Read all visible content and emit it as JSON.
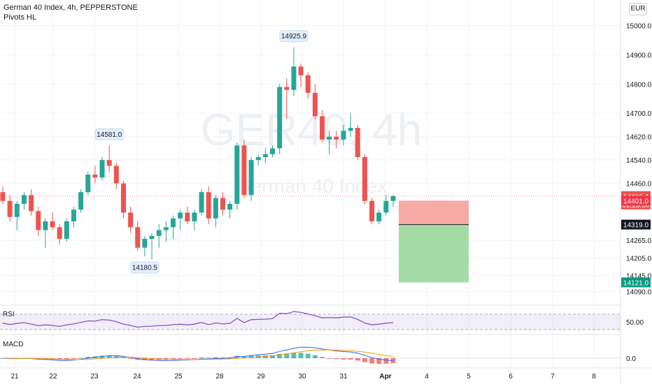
{
  "header": {
    "symbol_line": "German 40 Index, 4h, PEPPERSTONE",
    "indicator": "Pivots HL",
    "currency": "EUR"
  },
  "watermark": {
    "symbol": "GER40, 4h",
    "name": "German 40 Index"
  },
  "colors": {
    "up": "#26a69a",
    "down": "#ef5350",
    "rsi_line": "#7e57c2",
    "macd_line": "#2962ff",
    "signal_line": "#ff9800"
  },
  "chart_data": {
    "type": "candlestick",
    "ylim": [
      14060,
      15040
    ],
    "y_ticks": [
      15000.0,
      14900.0,
      14800.0,
      14700.0,
      14620.0,
      14540.0,
      14460.0,
      14265.0,
      14205.0,
      14145.0,
      14090.0
    ],
    "x_labels": [
      "21",
      "22",
      "23",
      "24",
      "25",
      "28",
      "29",
      "30",
      "31",
      "Apr",
      "4",
      "5",
      "6",
      "7",
      "8"
    ],
    "candles": [
      [
        14430,
        14450,
        14390,
        14400
      ],
      [
        14400,
        14420,
        14330,
        14345
      ],
      [
        14345,
        14400,
        14300,
        14390
      ],
      [
        14390,
        14430,
        14370,
        14420
      ],
      [
        14420,
        14440,
        14350,
        14365
      ],
      [
        14365,
        14380,
        14280,
        14300
      ],
      [
        14300,
        14340,
        14240,
        14330
      ],
      [
        14330,
        14360,
        14300,
        14310
      ],
      [
        14310,
        14320,
        14250,
        14270
      ],
      [
        14270,
        14340,
        14260,
        14330
      ],
      [
        14330,
        14380,
        14310,
        14370
      ],
      [
        14370,
        14440,
        14360,
        14430
      ],
      [
        14430,
        14500,
        14420,
        14490
      ],
      [
        14490,
        14520,
        14460,
        14480
      ],
      [
        14480,
        14550,
        14470,
        14540
      ],
      [
        14540,
        14590,
        14500,
        14520
      ],
      [
        14520,
        14530,
        14440,
        14460
      ],
      [
        14460,
        14470,
        14340,
        14360
      ],
      [
        14360,
        14380,
        14290,
        14310
      ],
      [
        14310,
        14330,
        14230,
        14240
      ],
      [
        14240,
        14280,
        14210,
        14270
      ],
      [
        14270,
        14290,
        14200,
        14280
      ],
      [
        14280,
        14320,
        14240,
        14300
      ],
      [
        14300,
        14330,
        14260,
        14310
      ],
      [
        14310,
        14350,
        14270,
        14340
      ],
      [
        14340,
        14370,
        14300,
        14360
      ],
      [
        14360,
        14380,
        14320,
        14330
      ],
      [
        14330,
        14370,
        14300,
        14360
      ],
      [
        14360,
        14440,
        14350,
        14430
      ],
      [
        14430,
        14450,
        14320,
        14340
      ],
      [
        14340,
        14420,
        14310,
        14410
      ],
      [
        14410,
        14430,
        14350,
        14370
      ],
      [
        14370,
        14400,
        14340,
        14390
      ],
      [
        14390,
        14600,
        14370,
        14590
      ],
      [
        14590,
        14610,
        14410,
        14420
      ],
      [
        14420,
        14550,
        14400,
        14540
      ],
      [
        14540,
        14560,
        14520,
        14550
      ],
      [
        14550,
        14580,
        14530,
        14560
      ],
      [
        14560,
        14590,
        14550,
        14580
      ],
      [
        14580,
        14800,
        14560,
        14790
      ],
      [
        14790,
        14820,
        14680,
        14780
      ],
      [
        14780,
        14925.9,
        14760,
        14860
      ],
      [
        14860,
        14870,
        14790,
        14830
      ],
      [
        14830,
        14840,
        14750,
        14770
      ],
      [
        14770,
        14800,
        14680,
        14690
      ],
      [
        14690,
        14710,
        14600,
        14610
      ],
      [
        14610,
        14640,
        14560,
        14620
      ],
      [
        14620,
        14640,
        14580,
        14610
      ],
      [
        14610,
        14660,
        14590,
        14640
      ],
      [
        14640,
        14700,
        14620,
        14650
      ],
      [
        14650,
        14660,
        14540,
        14550
      ],
      [
        14550,
        14560,
        14390,
        14400
      ],
      [
        14400,
        14410,
        14320,
        14330
      ],
      [
        14330,
        14370,
        14320,
        14360
      ],
      [
        14360,
        14420,
        14350,
        14400
      ],
      [
        14400,
        14420,
        14380,
        14416.4
      ]
    ],
    "pivots": [
      {
        "label": "14581.0",
        "type": "high"
      },
      {
        "label": "14180.5",
        "type": "low"
      },
      {
        "label": "14925.9",
        "type": "high"
      }
    ],
    "price_labels": [
      {
        "value": "14416.4",
        "sub": "01:23:36",
        "kind": "current"
      },
      {
        "value": "14401.0",
        "kind": "stop"
      },
      {
        "value": "14319.0",
        "kind": "entry"
      },
      {
        "value": "14121.0",
        "kind": "target"
      }
    ],
    "position": {
      "stop": 14401.0,
      "entry": 14319.0,
      "target": 14121.0
    },
    "rsi": {
      "label": "RSI",
      "level_label": "50.00"
    },
    "macd": {
      "label": "MACD",
      "level_label": "0.0"
    }
  }
}
